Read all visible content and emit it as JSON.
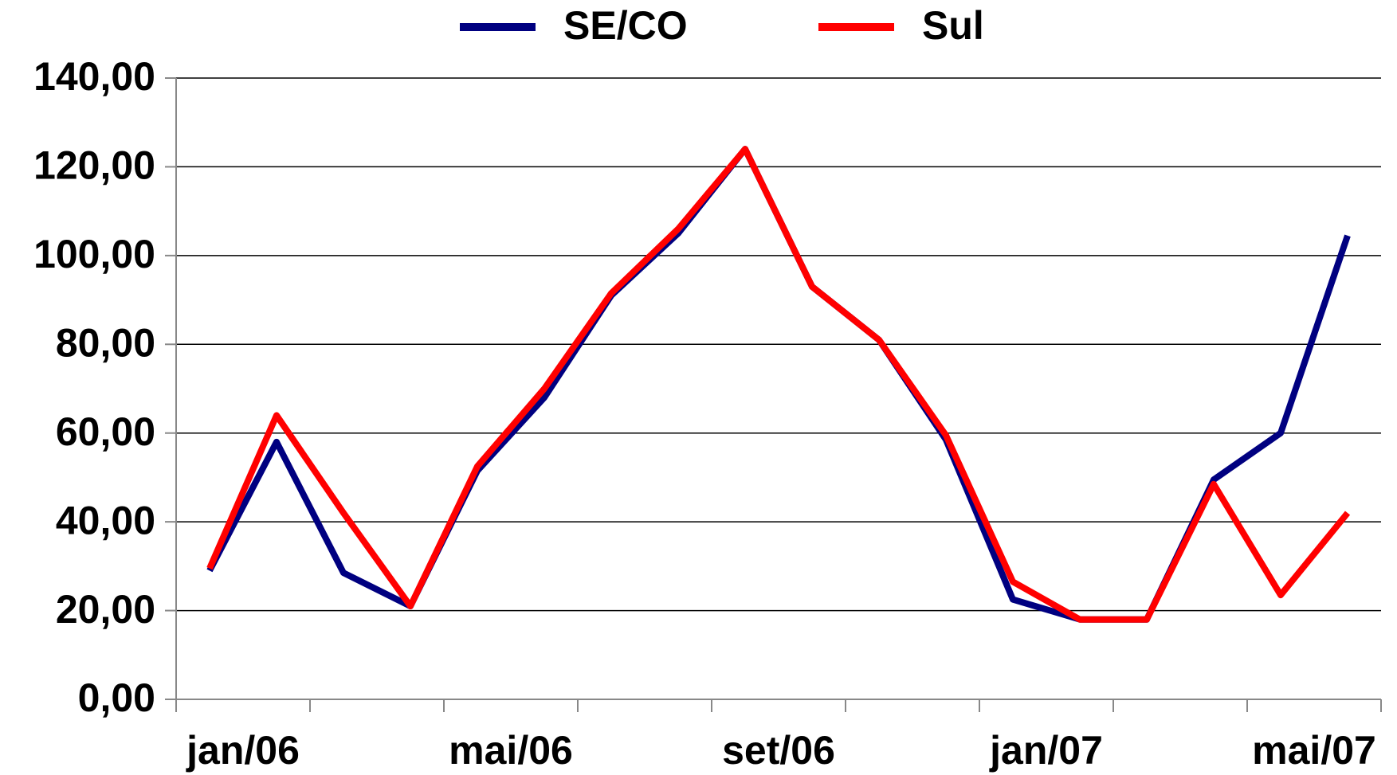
{
  "chart_data": {
    "type": "line",
    "categories": [
      "jan/06",
      null,
      null,
      null,
      "mai/06",
      null,
      null,
      null,
      "set/06",
      null,
      null,
      null,
      "jan/07",
      null,
      null,
      null,
      "mai/07",
      null
    ],
    "series": [
      {
        "name": "SE/CO",
        "color": "#000080",
        "values": [
          29,
          58,
          28.5,
          21,
          51.5,
          68,
          91,
          105,
          124,
          93,
          81,
          58.5,
          22.5,
          18,
          18,
          49.5,
          60,
          104.5
        ]
      },
      {
        "name": "Sul",
        "color": "#ff0000",
        "values": [
          29.5,
          64,
          42,
          21,
          52.5,
          70,
          91.5,
          106,
          124,
          93,
          81,
          59.5,
          26.5,
          18,
          18,
          48.5,
          23.5,
          42
        ]
      }
    ],
    "ylim": [
      0,
      140
    ],
    "yticks": [
      {
        "value": 0,
        "label": "0,00"
      },
      {
        "value": 20,
        "label": "20,00"
      },
      {
        "value": 40,
        "label": "40,00"
      },
      {
        "value": 60,
        "label": "60,00"
      },
      {
        "value": 80,
        "label": "80,00"
      },
      {
        "value": 100,
        "label": "100,00"
      },
      {
        "value": 120,
        "label": "120,00"
      },
      {
        "value": 140,
        "label": "140,00"
      }
    ],
    "grid": true
  }
}
